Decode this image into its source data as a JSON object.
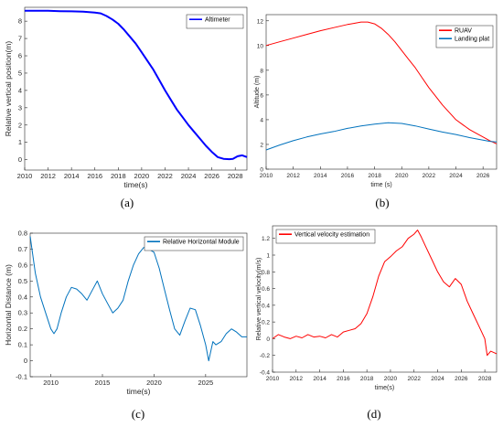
{
  "chart_data": [
    {
      "id": "a",
      "type": "line",
      "caption": "(a)",
      "xlabel": "time(s)",
      "ylabel": "Relative vertical position(m)",
      "xlim": [
        2010,
        2029
      ],
      "ylim": [
        -0.6,
        8.8
      ],
      "xticks": [
        2010,
        2012,
        2014,
        2016,
        2018,
        2020,
        2022,
        2024,
        2026,
        2028
      ],
      "yticks": [
        0,
        1,
        2,
        3,
        4,
        5,
        6,
        7,
        8
      ],
      "grid": false,
      "legend": "top-right",
      "series": [
        {
          "name": "Altimeter",
          "color": "#0000ff",
          "x": [
            2010,
            2011,
            2012,
            2013,
            2014,
            2015,
            2016,
            2016.5,
            2017,
            2017.5,
            2018,
            2018.5,
            2019,
            2019.5,
            2020,
            2020.5,
            2021,
            2021.5,
            2022,
            2022.5,
            2023,
            2023.5,
            2024,
            2024.5,
            2025,
            2025.5,
            2026,
            2026.5,
            2027,
            2027.5,
            2027.8,
            2028.2,
            2028.6,
            2029
          ],
          "y": [
            8.6,
            8.6,
            8.6,
            8.58,
            8.57,
            8.55,
            8.5,
            8.45,
            8.3,
            8.1,
            7.85,
            7.5,
            7.1,
            6.7,
            6.2,
            5.7,
            5.2,
            4.6,
            4.0,
            3.45,
            2.9,
            2.45,
            2.0,
            1.6,
            1.2,
            0.8,
            0.45,
            0.15,
            0.05,
            0.03,
            0.05,
            0.2,
            0.25,
            0.15
          ]
        }
      ]
    },
    {
      "id": "b",
      "type": "line",
      "caption": "(b)",
      "xlabel": "time (s)",
      "ylabel": "Altitude (m)",
      "xlim": [
        2010,
        2027
      ],
      "ylim": [
        0,
        12.5
      ],
      "xticks": [
        2010,
        2012,
        2014,
        2016,
        2018,
        2020,
        2022,
        2024,
        2026
      ],
      "yticks": [
        0,
        2,
        4,
        6,
        8,
        10,
        12
      ],
      "grid": false,
      "legend": "top-right",
      "series": [
        {
          "name": "RUAV",
          "color": "#ff0000",
          "x": [
            2010,
            2011,
            2012,
            2013,
            2014,
            2015,
            2016,
            2016.5,
            2017,
            2017.5,
            2018,
            2018.5,
            2019,
            2019.5,
            2020,
            2020.5,
            2021,
            2021.5,
            2022,
            2022.5,
            2023,
            2023.5,
            2024,
            2024.5,
            2025,
            2025.5,
            2026,
            2026.5,
            2027
          ],
          "y": [
            10.0,
            10.3,
            10.6,
            10.9,
            11.2,
            11.45,
            11.7,
            11.8,
            11.9,
            11.9,
            11.75,
            11.4,
            10.9,
            10.3,
            9.6,
            8.9,
            8.2,
            7.4,
            6.6,
            5.9,
            5.2,
            4.6,
            4.0,
            3.6,
            3.2,
            2.9,
            2.6,
            2.3,
            2.05
          ]
        },
        {
          "name": "Landing plat",
          "color": "#0072bd",
          "x": [
            2010,
            2011,
            2012,
            2013,
            2014,
            2015,
            2016,
            2017,
            2018,
            2019,
            2020,
            2021,
            2022,
            2023,
            2024,
            2025,
            2026,
            2026.5,
            2027
          ],
          "y": [
            1.55,
            1.95,
            2.3,
            2.6,
            2.85,
            3.05,
            3.3,
            3.5,
            3.65,
            3.75,
            3.7,
            3.5,
            3.25,
            3.0,
            2.8,
            2.55,
            2.35,
            2.25,
            2.2
          ]
        }
      ]
    },
    {
      "id": "c",
      "type": "line",
      "caption": "(c)",
      "xlabel": "time(s)",
      "ylabel": "Horizontal Distance (m)",
      "xlim": [
        2008,
        2029
      ],
      "ylim": [
        -0.1,
        0.8
      ],
      "xticks": [
        2010,
        2015,
        2020,
        2025
      ],
      "yticks": [
        -0.1,
        0,
        0.1,
        0.2,
        0.3,
        0.4,
        0.5,
        0.6,
        0.7,
        0.8
      ],
      "grid": false,
      "legend": "top-right",
      "series": [
        {
          "name": "Relative Horizontal Module",
          "color": "#0072bd",
          "x": [
            2008,
            2008.5,
            2009,
            2009.5,
            2010,
            2010.3,
            2010.6,
            2011,
            2011.5,
            2012,
            2012.5,
            2013,
            2013.5,
            2014,
            2014.5,
            2015,
            2015.5,
            2016,
            2016.5,
            2017,
            2017.5,
            2018,
            2018.5,
            2019,
            2019.5,
            2020,
            2020.5,
            2021,
            2021.5,
            2022,
            2022.5,
            2023,
            2023.5,
            2024,
            2024.5,
            2025,
            2025.3,
            2025.7,
            2026,
            2026.5,
            2027,
            2027.5,
            2028,
            2028.5,
            2029
          ],
          "y": [
            0.78,
            0.55,
            0.4,
            0.3,
            0.2,
            0.17,
            0.2,
            0.3,
            0.4,
            0.46,
            0.45,
            0.42,
            0.38,
            0.44,
            0.5,
            0.42,
            0.36,
            0.3,
            0.33,
            0.38,
            0.5,
            0.6,
            0.67,
            0.71,
            0.7,
            0.68,
            0.58,
            0.45,
            0.32,
            0.2,
            0.16,
            0.25,
            0.33,
            0.32,
            0.22,
            0.1,
            0.0,
            0.12,
            0.1,
            0.12,
            0.17,
            0.2,
            0.18,
            0.15,
            0.15
          ]
        }
      ]
    },
    {
      "id": "d",
      "type": "line",
      "caption": "(d)",
      "xlabel": "time(s)",
      "ylabel": "Relative vertical velocity(m/s)",
      "xlim": [
        2010,
        2029
      ],
      "ylim": [
        -0.4,
        1.35
      ],
      "xticks": [
        2010,
        2012,
        2014,
        2016,
        2018,
        2020,
        2022,
        2024,
        2026,
        2028
      ],
      "yticks": [
        -0.4,
        -0.2,
        0,
        0.2,
        0.4,
        0.6,
        0.8,
        1,
        1.2
      ],
      "grid": false,
      "legend": "top-left",
      "series": [
        {
          "name": "Vertical velocity estimation",
          "color": "#ff0000",
          "x": [
            2010,
            2010.5,
            2011,
            2011.5,
            2012,
            2012.5,
            2013,
            2013.5,
            2014,
            2014.5,
            2015,
            2015.5,
            2016,
            2016.5,
            2017,
            2017.5,
            2018,
            2018.5,
            2019,
            2019.5,
            2020,
            2020.5,
            2021,
            2021.5,
            2022,
            2022.3,
            2022.6,
            2023,
            2023.5,
            2024,
            2024.5,
            2025,
            2025.5,
            2026,
            2026.5,
            2027,
            2027.5,
            2028,
            2028.2,
            2028.5,
            2029
          ],
          "y": [
            0.0,
            0.05,
            0.02,
            0.0,
            0.03,
            0.01,
            0.05,
            0.02,
            0.03,
            0.01,
            0.05,
            0.02,
            0.08,
            0.1,
            0.12,
            0.18,
            0.3,
            0.5,
            0.75,
            0.92,
            0.98,
            1.05,
            1.1,
            1.2,
            1.25,
            1.3,
            1.22,
            1.1,
            0.95,
            0.8,
            0.68,
            0.62,
            0.72,
            0.65,
            0.45,
            0.3,
            0.15,
            0.0,
            -0.2,
            -0.15,
            -0.18
          ]
        }
      ]
    }
  ]
}
